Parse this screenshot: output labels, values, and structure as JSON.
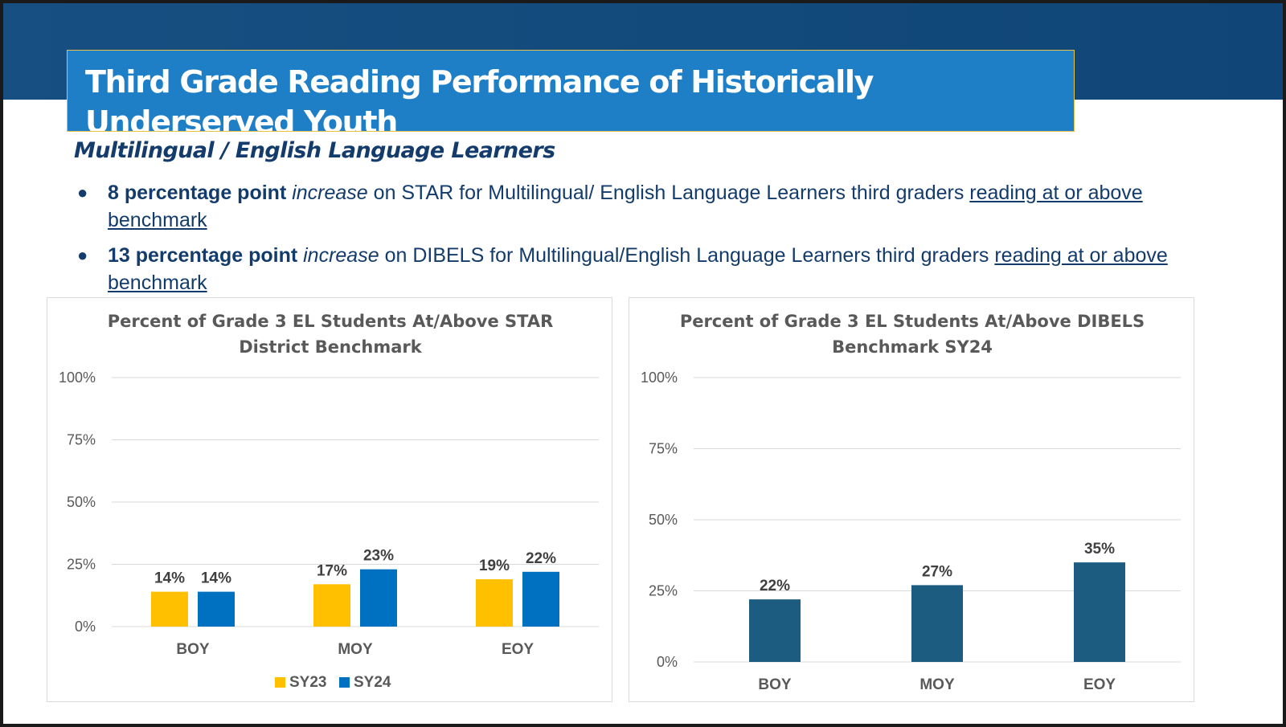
{
  "slide": {
    "title": "Third Grade Reading Performance of Historically Underserved Youth",
    "subtitle": "Multilingual / English Language Learners",
    "bullets": [
      {
        "bold": "8 percentage point ",
        "italic": "increase",
        "text": " on STAR  for Multilingual/ English Language Learners  third graders ",
        "underline": "reading at or above benchmark"
      },
      {
        "bold": "13 percentage point ",
        "italic": "increase",
        "text": " on DIBELS for Multilingual/English Language Learners  third graders ",
        "underline": "reading at or above benchmark"
      }
    ],
    "bullet_glyph": "●"
  },
  "colors": {
    "band": "#174f82",
    "title_box": "#1f7fc6",
    "title_border": "#e8c14a",
    "text_dark_blue": "#133b6b",
    "sy23": "#ffc000",
    "sy24": "#0070c0",
    "dibels_bar": "#1b5c80"
  },
  "chart_data": [
    {
      "type": "bar",
      "title_lines": [
        "Percent of Grade 3 EL Students At/Above STAR",
        "District Benchmark"
      ],
      "categories": [
        "BOY",
        "MOY",
        "EOY"
      ],
      "series": [
        {
          "name": "SY23",
          "values": [
            14,
            17,
            19
          ],
          "labels": [
            "14%",
            "17%",
            "19%"
          ],
          "color": "#ffc000"
        },
        {
          "name": "SY24",
          "values": [
            14,
            23,
            22
          ],
          "labels": [
            "14%",
            "23%",
            "22%"
          ],
          "color": "#0070c0"
        }
      ],
      "ylim": [
        0,
        100
      ],
      "yticks": [
        0,
        25,
        50,
        75,
        100
      ],
      "ytick_labels": [
        "0%",
        "25%",
        "50%",
        "75%",
        "100%"
      ],
      "grid": true,
      "legend": "bottom"
    },
    {
      "type": "bar",
      "title_lines": [
        "Percent of Grade 3 EL Students At/Above DIBELS",
        "Benchmark SY24"
      ],
      "categories": [
        "BOY",
        "MOY",
        "EOY"
      ],
      "series": [
        {
          "values": [
            22,
            27,
            35
          ],
          "labels": [
            "22%",
            "27%",
            "35%"
          ],
          "color": "#1b5c80"
        }
      ],
      "ylim": [
        0,
        100
      ],
      "yticks": [
        0,
        25,
        50,
        75,
        100
      ],
      "ytick_labels": [
        "0%",
        "25%",
        "50%",
        "75%",
        "100%"
      ],
      "grid": true,
      "legend": "none"
    }
  ]
}
